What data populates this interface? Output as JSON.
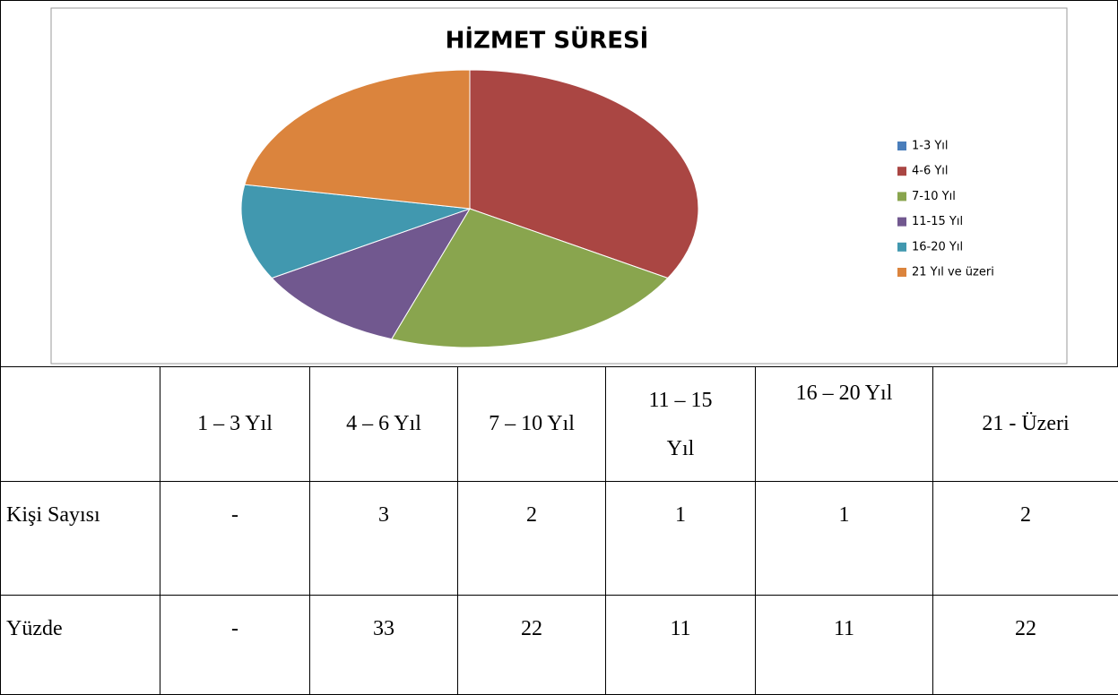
{
  "chart_data": {
    "type": "pie",
    "title": "HİZMET SÜRESİ",
    "categories": [
      "1-3 Yıl",
      "4-6 Yıl",
      "7-10 Yıl",
      "11-15 Yıl",
      "16-20 Yıl",
      "21 Yıl ve üzeri"
    ],
    "values": [
      0,
      33,
      22,
      11,
      11,
      22
    ],
    "colors": [
      "#4a7ebb",
      "#aa4643",
      "#89a54e",
      "#71588f",
      "#4198af",
      "#db843d"
    ],
    "legend": "right"
  },
  "table": {
    "header": [
      "1 – 3 Yıl",
      "4 – 6 Yıl",
      "7 – 10 Yıl",
      "11 – 15 Yıl",
      "16 – 20 Yıl",
      "21 - Üzeri"
    ],
    "rows": [
      [
        "Kişi Sayısı",
        "-",
        3,
        2,
        1,
        1,
        2
      ],
      [
        "Yüzde",
        "-",
        33,
        22,
        11,
        11,
        22
      ]
    ]
  }
}
